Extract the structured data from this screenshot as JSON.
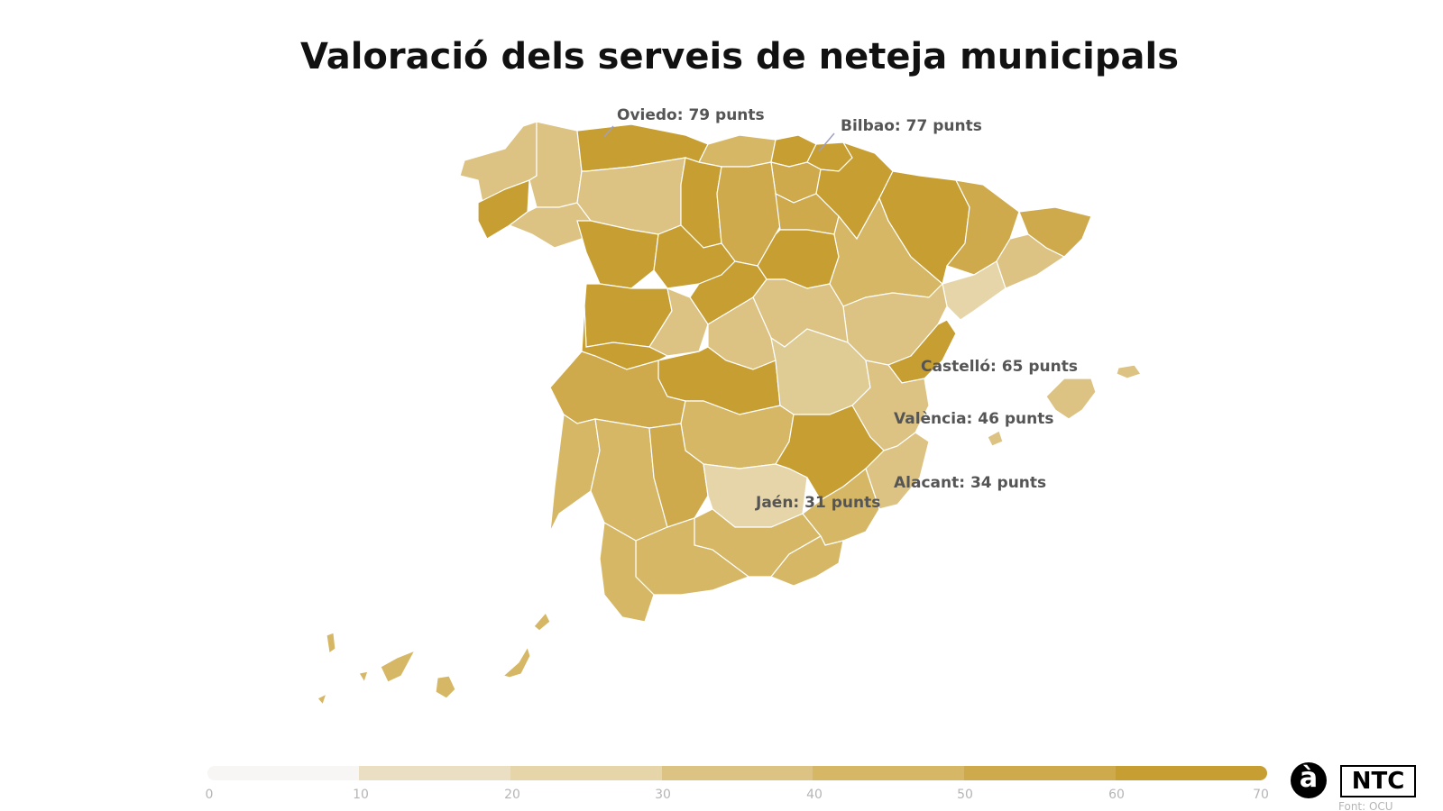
{
  "title": "Valoració dels serveis de neteja municipals",
  "callouts": {
    "oviedo": "Oviedo: 79 punts",
    "bilbao": "Bilbao: 77 punts",
    "castello": "Castelló: 65 punts",
    "valencia": "València: 46 punts",
    "alacant": "Alacant: 34 punts",
    "jaen": "Jaén: 31 punts"
  },
  "legend": {
    "ticks": [
      "0",
      "10",
      "20",
      "30",
      "40",
      "50",
      "60",
      "70"
    ],
    "colors": [
      "#f7f6f4",
      "#eadfc2",
      "#e6d5a9",
      "#dcc383",
      "#d6b766",
      "#ceaa4c",
      "#c79e32"
    ]
  },
  "colors": {
    "c1": "#c79e32",
    "c2": "#ceaa4c",
    "c3": "#d6b766",
    "c4": "#dcc383",
    "c5": "#e6d5a9",
    "c6": "#dfcc95"
  },
  "logos": {
    "a_logo": "à",
    "ntc_logo": "NTC"
  },
  "source": "Font: OCU"
}
